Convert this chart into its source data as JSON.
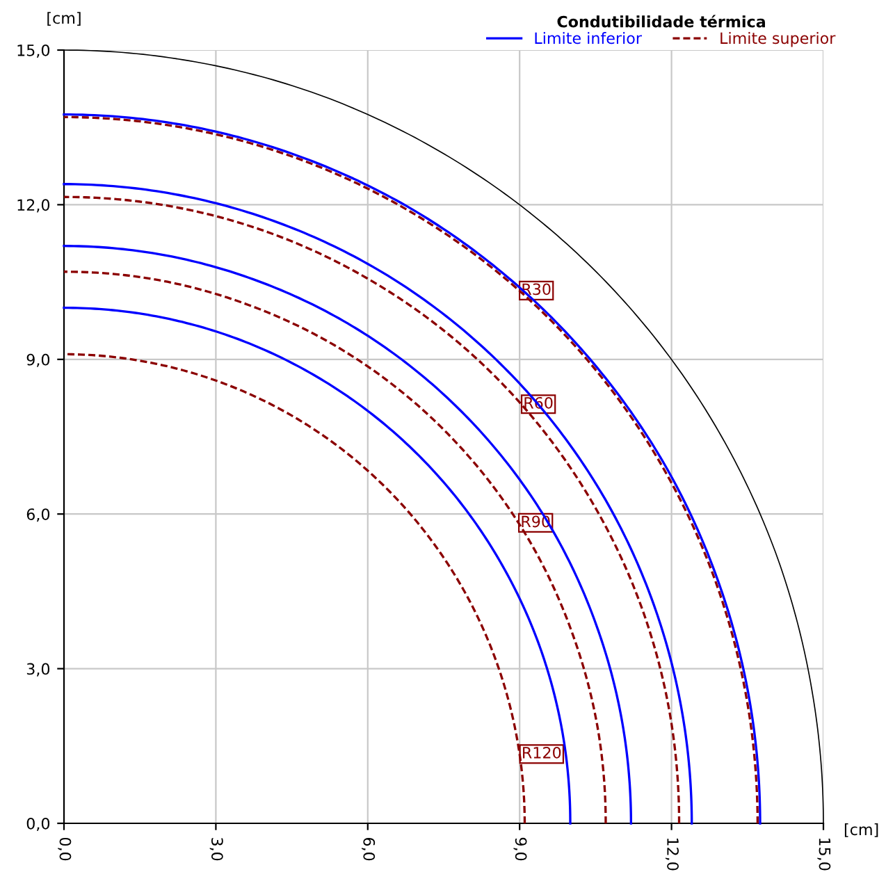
{
  "chart_data": {
    "type": "line",
    "legend_title": "Condutibilidade térmica",
    "xlabel": "[cm]",
    "ylabel": "[cm]",
    "xlim": [
      0,
      15
    ],
    "ylim": [
      0,
      15
    ],
    "xticks": [
      {
        "value": 0,
        "label": "0,0"
      },
      {
        "value": 3,
        "label": "3,0"
      },
      {
        "value": 6,
        "label": "6,0"
      },
      {
        "value": 9,
        "label": "9,0"
      },
      {
        "value": 12,
        "label": "12,0"
      },
      {
        "value": 15,
        "label": "15,0"
      }
    ],
    "yticks": [
      {
        "value": 0,
        "label": "0,0"
      },
      {
        "value": 3,
        "label": "3,0"
      },
      {
        "value": 6,
        "label": "6,0"
      },
      {
        "value": 9,
        "label": "9,0"
      },
      {
        "value": 12,
        "label": "12,0"
      },
      {
        "value": 15,
        "label": "15,0"
      }
    ],
    "grid": true,
    "legend": "top right",
    "marker": "none",
    "series": [
      {
        "color": "#000000",
        "line_style": "solid",
        "x": [
          15,
          14.77,
          14.1,
          12.99,
          11.49,
          9.64,
          7.5,
          5.13,
          2.6,
          0
        ],
        "values": [
          0,
          2.6,
          5.13,
          7.5,
          9.64,
          11.49,
          12.99,
          14.1,
          14.77,
          15
        ]
      },
      {
        "name": "Limite inferior",
        "color": "#0000ff",
        "line_style": "solid",
        "x": [
          13.75,
          13.54,
          12.92,
          11.91,
          10.53,
          8.84,
          6.88,
          4.7,
          2.39,
          0
        ],
        "values": [
          0,
          2.39,
          4.7,
          6.88,
          8.84,
          10.53,
          11.91,
          12.92,
          13.54,
          13.75
        ]
      },
      {
        "color": "#0000ff",
        "line_style": "solid",
        "x": [
          12.4,
          12.21,
          11.65,
          10.74,
          9.5,
          7.97,
          6.2,
          4.24,
          2.15,
          0
        ],
        "values": [
          0,
          2.15,
          4.24,
          6.2,
          7.97,
          9.5,
          10.74,
          11.65,
          12.21,
          12.4
        ]
      },
      {
        "color": "#0000ff",
        "line_style": "solid",
        "x": [
          11.2,
          11.03,
          10.52,
          9.7,
          8.58,
          7.2,
          5.6,
          3.83,
          1.94,
          0
        ],
        "values": [
          0,
          1.94,
          3.83,
          5.6,
          7.2,
          8.58,
          9.7,
          10.52,
          11.03,
          11.2
        ]
      },
      {
        "color": "#0000ff",
        "line_style": "solid",
        "x": [
          10,
          9.85,
          9.4,
          8.66,
          7.66,
          6.43,
          5,
          3.42,
          1.74,
          0
        ],
        "values": [
          0,
          1.74,
          3.42,
          5,
          6.43,
          7.66,
          8.66,
          9.4,
          9.85,
          10
        ]
      },
      {
        "name": "Limite superior",
        "color": "#8b0000",
        "line_style": "dashed",
        "x": [
          13.7,
          13.49,
          12.87,
          11.86,
          10.49,
          8.81,
          6.85,
          4.69,
          2.38,
          0
        ],
        "values": [
          0,
          2.38,
          4.69,
          6.85,
          8.81,
          10.49,
          11.86,
          12.87,
          13.49,
          13.7
        ]
      },
      {
        "color": "#8b0000",
        "line_style": "dashed",
        "x": [
          12.15,
          11.97,
          11.42,
          10.52,
          9.31,
          7.81,
          6.08,
          4.16,
          2.11,
          0
        ],
        "values": [
          0,
          2.11,
          4.16,
          6.08,
          7.81,
          9.31,
          10.52,
          11.42,
          11.97,
          12.15
        ]
      },
      {
        "color": "#8b0000",
        "line_style": "dashed",
        "x": [
          10.7,
          10.54,
          10.05,
          9.27,
          8.2,
          6.88,
          5.35,
          3.66,
          1.86,
          0
        ],
        "values": [
          0,
          1.86,
          3.66,
          5.35,
          6.88,
          8.2,
          9.27,
          10.05,
          10.54,
          10.7
        ]
      },
      {
        "color": "#8b0000",
        "line_style": "dashed",
        "x": [
          9.1,
          8.96,
          8.55,
          7.88,
          6.97,
          5.85,
          4.55,
          3.11,
          1.58,
          0
        ],
        "values": [
          0,
          1.58,
          3.11,
          4.55,
          5.85,
          6.97,
          7.88,
          8.55,
          8.96,
          9.1
        ]
      }
    ],
    "annotations": [
      "R30",
      "R60",
      "R90",
      "R120"
    ]
  }
}
